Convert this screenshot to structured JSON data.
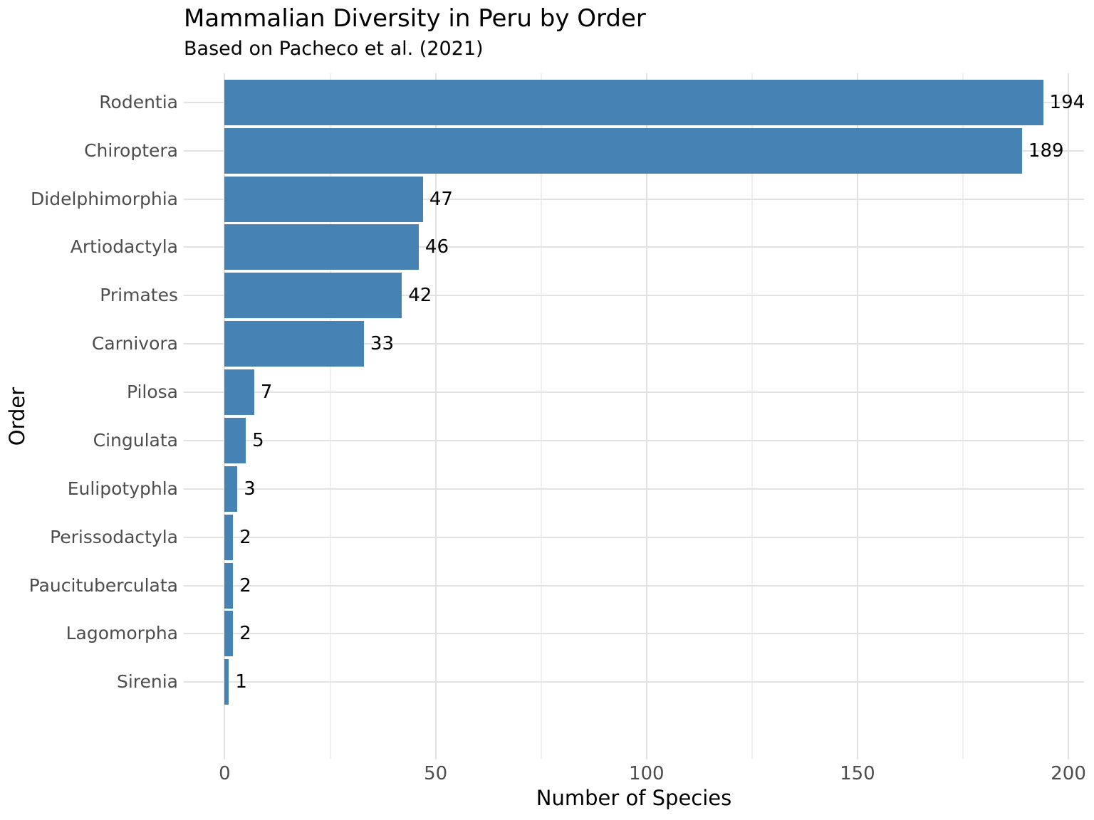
{
  "colors": {
    "bar": "#4682B4",
    "grid_major": "#e2e2e2",
    "grid_minor": "#efefef",
    "tick_text": "#4d4d4d",
    "text": "#000000",
    "background": "#ffffff"
  },
  "chart_data": {
    "type": "bar",
    "orientation": "horizontal",
    "title": "Mammalian Diversity in Peru by Order",
    "subtitle": "Based on Pacheco et al. (2021)",
    "xlabel": "Number of Species",
    "ylabel": "Order",
    "categories": [
      "Rodentia",
      "Chiroptera",
      "Didelphimorphia",
      "Artiodactyla",
      "Primates",
      "Carnivora",
      "Pilosa",
      "Cingulata",
      "Eulipotyphla",
      "Perissodactyla",
      "Paucituberculata",
      "Lagomorpha",
      "Sirenia"
    ],
    "values": [
      194,
      189,
      47,
      46,
      42,
      33,
      7,
      5,
      3,
      2,
      2,
      2,
      1
    ],
    "value_labels": [
      "194",
      "189",
      "47",
      "46",
      "42",
      "33",
      "7",
      "5",
      "3",
      "2",
      "2",
      "2",
      "1"
    ],
    "x_ticks": [
      0,
      50,
      100,
      150,
      200
    ],
    "x_tick_labels": [
      "0",
      "50",
      "100",
      "150",
      "200"
    ],
    "x_minor_ticks": [
      25,
      75,
      125,
      175
    ],
    "xlim": [
      -9.7,
      203.7
    ],
    "grid": "vertical major+minor, horizontal major at category centers",
    "legend": false
  }
}
